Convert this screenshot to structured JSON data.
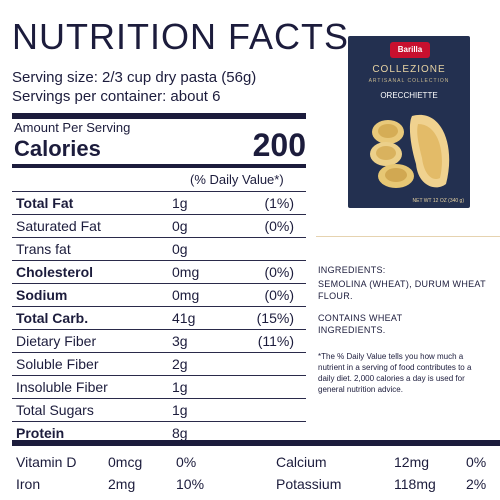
{
  "title": "NUTRITION FACTS",
  "serving_size": "Serving size: 2/3 cup dry pasta (56g)",
  "servings_per_container": "Servings per container: about 6",
  "amount_per_serving": "Amount Per Serving",
  "calories_label": "Calories",
  "calories_value": "200",
  "daily_value_header": "(% Daily Value*)",
  "nutrients": [
    {
      "name": "Total Fat",
      "amount": "1g",
      "dv": "(1%)",
      "bold": true
    },
    {
      "name": "Saturated Fat",
      "amount": "0g",
      "dv": "(0%)",
      "bold": false
    },
    {
      "name": "Trans fat",
      "amount": "0g",
      "dv": "",
      "bold": false
    },
    {
      "name": "Cholesterol",
      "amount": "0mg",
      "dv": "(0%)",
      "bold": true
    },
    {
      "name": "Sodium",
      "amount": "0mg",
      "dv": "(0%)",
      "bold": true
    },
    {
      "name": "Total Carb.",
      "amount": "41g",
      "dv": "(15%)",
      "bold": true
    },
    {
      "name": "Dietary Fiber",
      "amount": "3g",
      "dv": "(11%)",
      "bold": false
    },
    {
      "name": "Soluble Fiber",
      "amount": "2g",
      "dv": "",
      "bold": false
    },
    {
      "name": "Insoluble Fiber",
      "amount": "1g",
      "dv": "",
      "bold": false
    },
    {
      "name": "Total Sugars",
      "amount": "1g",
      "dv": "",
      "bold": false
    },
    {
      "name": "Protein",
      "amount": "8g",
      "dv": "",
      "bold": true
    }
  ],
  "vitamins": [
    {
      "name": "Vitamin D",
      "amount": "0mcg",
      "dv": "0%"
    },
    {
      "name": "Iron",
      "amount": "2mg",
      "dv": "10%"
    },
    {
      "name": "Calcium",
      "amount": "12mg",
      "dv": "0%"
    },
    {
      "name": "Potassium",
      "amount": "118mg",
      "dv": "2%"
    }
  ],
  "package": {
    "brand": "Barilla",
    "collection": "COLLEZIONE",
    "subtitle": "ARTISANAL COLLECTION",
    "product": "ORECCHIETTE",
    "net_wt": "NET WT 12 OZ (340 g)"
  },
  "ingredients_heading": "INGREDIENTS:",
  "ingredients_text": "SEMOLINA (WHEAT), DURUM WHEAT FLOUR.",
  "contains": "CONTAINS WHEAT INGREDIENTS.",
  "footnote": "*The % Daily Value tells you how much a nutrient in a serving of food contributes to a daily diet. 2,000 calories a day is used for general nutrition advice.",
  "colors": {
    "text": "#1c1c3c",
    "box": "#233050",
    "accent": "#c8102e",
    "gold": "#e7d3a3"
  }
}
